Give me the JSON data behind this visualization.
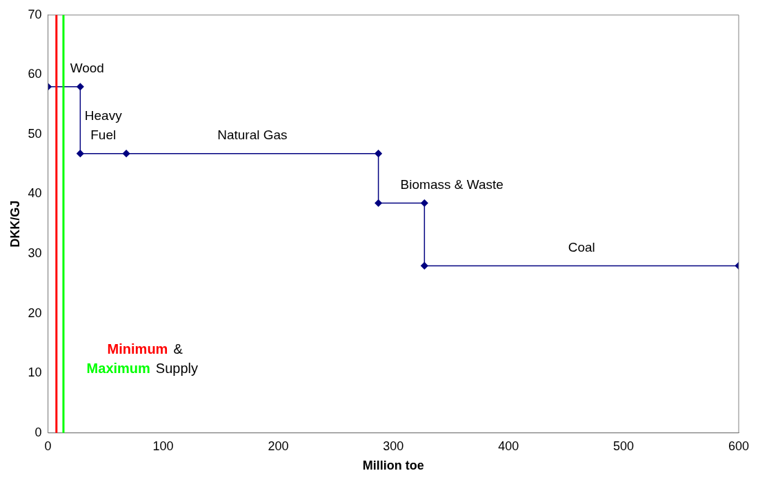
{
  "chart_data": {
    "type": "line",
    "xlabel": "Million toe",
    "ylabel": "DKK/GJ",
    "x": [
      0,
      28,
      28,
      68,
      287,
      287,
      327,
      327,
      600
    ],
    "series": [
      {
        "color": "#000080",
        "values": [
          58,
          58,
          46.8,
          46.8,
          46.8,
          38.5,
          38.5,
          28,
          28
        ]
      }
    ],
    "marker": "diamond",
    "line_style": "solid",
    "grid": false,
    "legend": false,
    "xlim": [
      0,
      600
    ],
    "xticks": [
      0,
      100,
      200,
      300,
      400,
      500,
      600
    ],
    "ylim": [
      0,
      70
    ],
    "yticks": [
      0,
      10,
      20,
      30,
      40,
      50,
      60,
      70
    ],
    "ref_lines": [
      {
        "axis": "x",
        "value": 7.3,
        "label": "Minimum",
        "color": "#ff0000"
      },
      {
        "axis": "x",
        "value": 13.4,
        "label": "Maximum",
        "color": "#00ff00"
      }
    ],
    "annotations": [
      "Wood",
      "Heavy\nFuel",
      "Natural Gas",
      "Biomass & Waste",
      "Coal",
      "&",
      "Supply"
    ]
  }
}
